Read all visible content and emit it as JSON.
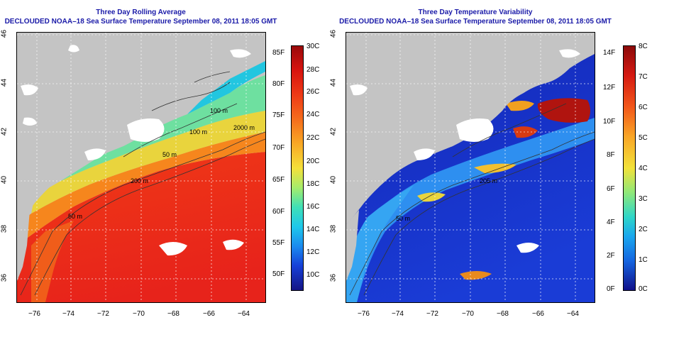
{
  "left_panel": {
    "title_line1": "Three Day Rolling Average",
    "title_line2": "DECLOUDED NOAA–18 Sea Surface Temperature September 08, 2011 18:05 GMT",
    "x_ticks": [
      "−76",
      "−74",
      "−72",
      "−70",
      "−68",
      "−66",
      "−64"
    ],
    "y_ticks": [
      "36",
      "38",
      "40",
      "42",
      "44",
      "46"
    ],
    "depth_labels": [
      "100 m",
      "100 m",
      "2000 m",
      "200 m",
      "50 m",
      "50 m"
    ],
    "colorbar": {
      "fahrenheit": [
        "85F",
        "80F",
        "75F",
        "70F",
        "65F",
        "60F",
        "55F",
        "50F"
      ],
      "celsius": [
        "30C",
        "28C",
        "26C",
        "24C",
        "22C",
        "20C",
        "18C",
        "16C",
        "14C",
        "12C",
        "10C"
      ]
    }
  },
  "right_panel": {
    "title_line1": "Three Day Temperature Variability",
    "title_line2": "DECLOUDED NOAA–18 Sea Surface Temperature September 08, 2011 18:05 GMT",
    "x_ticks": [
      "−76",
      "−74",
      "−72",
      "−70",
      "−68",
      "−66",
      "−64"
    ],
    "y_ticks": [
      "36",
      "38",
      "40",
      "42",
      "44",
      "46"
    ],
    "depth_labels": [
      "205 m",
      "50 m"
    ],
    "colorbar": {
      "fahrenheit": [
        "14F",
        "12F",
        "10F",
        "8F",
        "6F",
        "4F",
        "2F",
        "0F"
      ],
      "celsius": [
        "8C",
        "7C",
        "6C",
        "5C",
        "4C",
        "3C",
        "2C",
        "1C",
        "0C"
      ]
    }
  },
  "colors": {
    "land": "#c4c4c4",
    "cloud": "#ffffff",
    "title": "#1a1aa8"
  }
}
